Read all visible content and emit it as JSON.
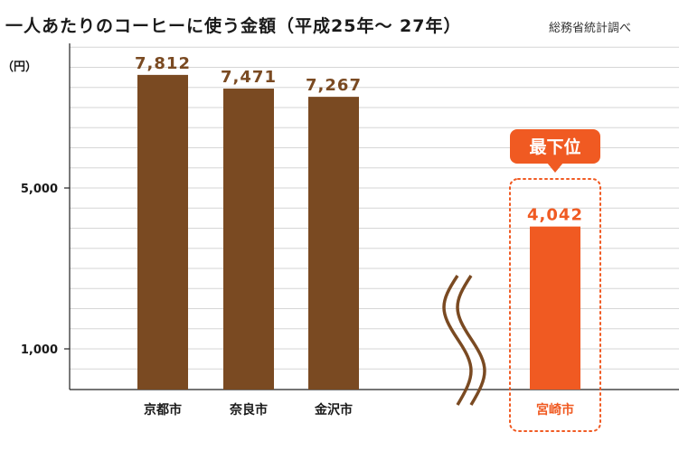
{
  "title": "一人あたりのコーヒーに使う金額（平成25年〜 27年）",
  "source": "総務省統計調べ",
  "colors": {
    "bar": "#7a4a22",
    "highlight": "#f05a22",
    "grid": "#d6d6d6",
    "axis": "#222222",
    "text": "#1a1a1a"
  },
  "chart_data": {
    "type": "bar",
    "title": "一人あたりのコーヒーに使う金額（平成25年〜 27年）",
    "ylabel": "（円）",
    "y_ticks": [
      {
        "value": 1000,
        "label": "1,000"
      },
      {
        "value": 5000,
        "label": "5,000"
      }
    ],
    "ylim": [
      0,
      9000
    ],
    "categories": [
      "京都市",
      "奈良市",
      "金沢市",
      "宮崎市"
    ],
    "values": [
      7812,
      7471,
      7267,
      4042
    ],
    "value_labels": [
      "7,812",
      "7,471",
      "7,267",
      "4,042"
    ],
    "highlight_index": 3,
    "highlight_label": "最下位",
    "axis_break": true,
    "grid": true
  }
}
